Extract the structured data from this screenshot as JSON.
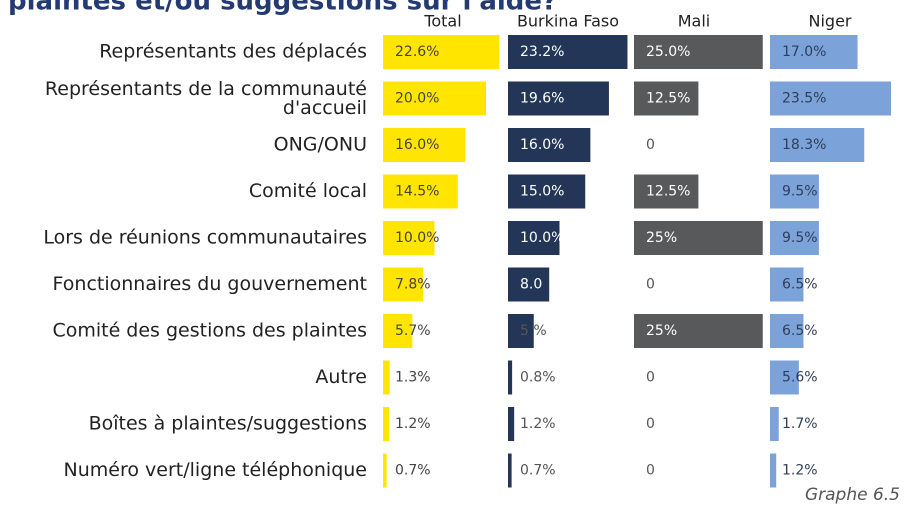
{
  "chart_data": {
    "type": "bar",
    "title": "plaintes et/ou suggestions sur l'aide?",
    "footnote": "Graphe 6.5",
    "categories": [
      "Représentants des déplacés",
      "Représentants de la communauté d'accueil",
      "ONG/ONU",
      "Comité local",
      "Lors de réunions communautaires",
      "Fonctionnaires du gouvernement",
      "Comité des gestions des plaintes",
      "Autre",
      "Boîtes à plaintes/suggestions",
      "Numéro vert/ligne téléphonique"
    ],
    "series": [
      {
        "name": "Total",
        "color": "#ffe500",
        "values": [
          22.6,
          20.0,
          16.0,
          14.5,
          10.0,
          7.8,
          5.7,
          1.3,
          1.2,
          0.7
        ],
        "value_labels": [
          "22.6%",
          "20.0%",
          "16.0%",
          "14.5%",
          "10.0%",
          "7.8%",
          "5.7%",
          "1.3%",
          "1.2%",
          "0.7%"
        ]
      },
      {
        "name": "Burkina Faso",
        "color": "#233658",
        "values": [
          23.2,
          19.6,
          16.0,
          15.0,
          10.0,
          8.0,
          5.0,
          0.8,
          1.2,
          0.7
        ],
        "value_labels": [
          "23.2%",
          "19.6%",
          "16.0%",
          "15.0%",
          "10.0%",
          "8.0",
          "5 %",
          "0.8%",
          "1.2%",
          "0.7%"
        ]
      },
      {
        "name": "Mali",
        "color": "#58595b",
        "values": [
          25.0,
          12.5,
          0,
          12.5,
          25,
          0,
          25,
          0,
          0,
          0
        ],
        "value_labels": [
          "25.0%",
          "12.5%",
          "0",
          "12.5%",
          "25%",
          "0",
          "25%",
          "0",
          "0",
          "0"
        ]
      },
      {
        "name": "Niger",
        "color": "#7ba3d9",
        "values": [
          17.0,
          23.5,
          18.3,
          9.5,
          9.5,
          6.5,
          6.5,
          5.6,
          1.7,
          1.2
        ],
        "value_labels": [
          "17.0%",
          "23.5%",
          "18.3%",
          "9.5%",
          "9.5%",
          "6.5%",
          "6.5%",
          "5.6%",
          "1.7%",
          "1.2%"
        ]
      }
    ]
  }
}
